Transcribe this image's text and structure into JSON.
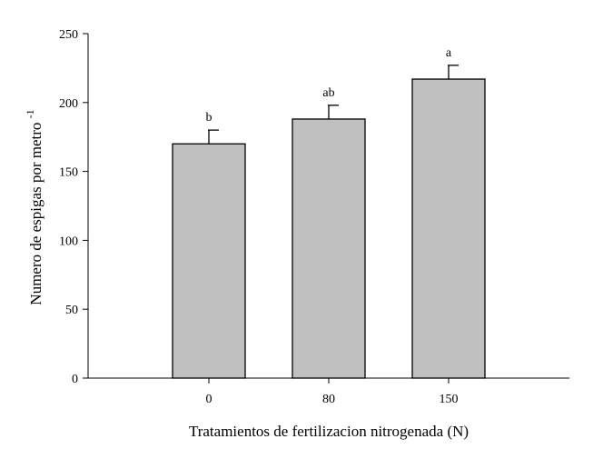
{
  "chart_data": {
    "type": "bar",
    "categories": [
      "0",
      "80",
      "150"
    ],
    "values": [
      170,
      188,
      217
    ],
    "errors": [
      10,
      10,
      10
    ],
    "significance_letters": [
      "b",
      "ab",
      "a"
    ],
    "xlabel": "Tratamientos de fertilizacion nitrogenada (N)",
    "ylabel": "Numero de espigas por metro",
    "ylabel_superscript": "-1",
    "ylim": [
      0,
      250
    ],
    "yticks": [
      "0",
      "50",
      "100",
      "150",
      "200",
      "250"
    ],
    "grid": false,
    "bar_color": "#c0c0c0",
    "edge_color": "#000000"
  }
}
